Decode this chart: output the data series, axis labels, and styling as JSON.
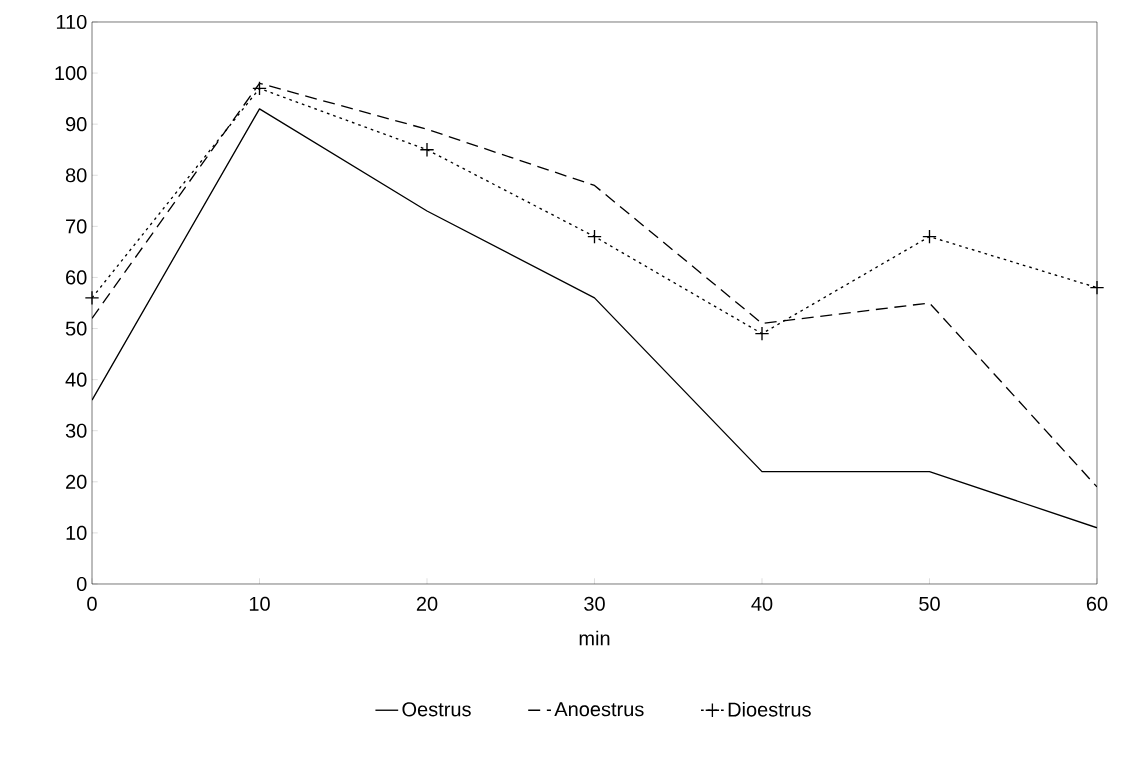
{
  "chart_data": {
    "type": "line",
    "xlabel": "min",
    "x": [
      0,
      10,
      20,
      30,
      40,
      50,
      60
    ],
    "series": [
      {
        "name": "Oestrus",
        "color": "#000000",
        "line_style": "solid",
        "values": [
          36,
          93,
          73,
          56,
          22,
          22,
          11
        ]
      },
      {
        "name": "Anoestrus",
        "color": "#000000",
        "line_style": "dashed",
        "values": [
          52,
          98,
          89,
          78,
          51,
          55,
          19
        ]
      },
      {
        "name": "Dioestrus",
        "color": "#000000",
        "line_style": "dotted",
        "marker": "cross",
        "values": [
          56,
          97,
          85,
          68,
          49,
          68,
          58
        ]
      }
    ],
    "xlim": [
      0,
      60
    ],
    "xticks": [
      0,
      10,
      20,
      30,
      40,
      50,
      60
    ],
    "ylim": [
      0,
      110
    ],
    "yticks": [
      0,
      10,
      20,
      30,
      40,
      50,
      60,
      70,
      80,
      90,
      100,
      110
    ],
    "legend": "bottom"
  }
}
